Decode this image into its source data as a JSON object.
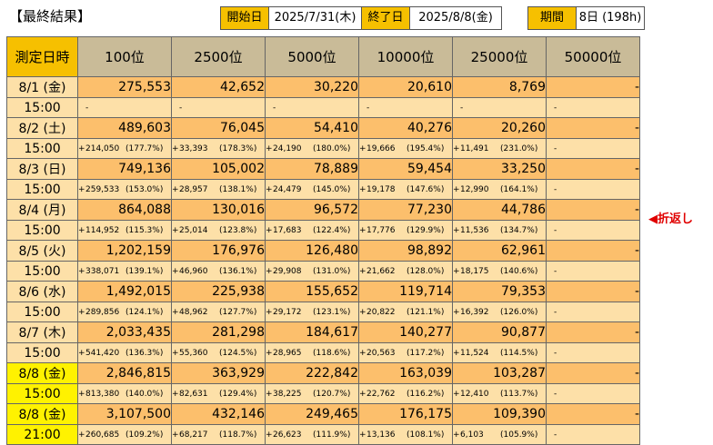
{
  "title": "【最終結果】",
  "header": {
    "start_label": "開始日",
    "start_value": "2025/7/31(木)",
    "end_label": "終了日",
    "end_value": "2025/8/8(金)",
    "period_label": "期間",
    "period_value": "8日 (198h)"
  },
  "columns": [
    "測定日時",
    "100位",
    "2500位",
    "5000位",
    "10000位",
    "25000位",
    "50000位"
  ],
  "rows": [
    {
      "date": "8/1 (金)",
      "time": "15:00",
      "highlight": false,
      "values": [
        "275,553",
        "42,652",
        "30,220",
        "20,610",
        "8,769",
        "-"
      ],
      "diffs": [
        [
          "",
          "-",
          ""
        ],
        [
          "",
          "-",
          ""
        ],
        [
          "",
          "-",
          ""
        ],
        [
          "",
          "-",
          ""
        ],
        [
          "",
          "-",
          ""
        ],
        [
          "",
          "-",
          ""
        ]
      ]
    },
    {
      "date": "8/2 (土)",
      "time": "15:00",
      "highlight": false,
      "values": [
        "489,603",
        "76,045",
        "54,410",
        "40,276",
        "20,260",
        "-"
      ],
      "diffs": [
        [
          "+",
          "214,050",
          "(177.7%)"
        ],
        [
          "+",
          "33,393",
          "(178.3%)"
        ],
        [
          "+",
          "24,190",
          "(180.0%)"
        ],
        [
          "+",
          "19,666",
          "(195.4%)"
        ],
        [
          "+",
          "11,491",
          "(231.0%)"
        ],
        [
          "",
          "-",
          ""
        ]
      ]
    },
    {
      "date": "8/3 (日)",
      "time": "15:00",
      "highlight": false,
      "values": [
        "749,136",
        "105,002",
        "78,889",
        "59,454",
        "33,250",
        "-"
      ],
      "diffs": [
        [
          "+",
          "259,533",
          "(153.0%)"
        ],
        [
          "+",
          "28,957",
          "(138.1%)"
        ],
        [
          "+",
          "24,479",
          "(145.0%)"
        ],
        [
          "+",
          "19,178",
          "(147.6%)"
        ],
        [
          "+",
          "12,990",
          "(164.1%)"
        ],
        [
          "",
          "-",
          ""
        ]
      ]
    },
    {
      "date": "8/4 (月)",
      "time": "15:00",
      "highlight": false,
      "values": [
        "864,088",
        "130,016",
        "96,572",
        "77,230",
        "44,786",
        "-"
      ],
      "diffs": [
        [
          "+",
          "114,952",
          "(115.3%)"
        ],
        [
          "+",
          "25,014",
          "(123.8%)"
        ],
        [
          "+",
          "17,683",
          "(122.4%)"
        ],
        [
          "+",
          "17,776",
          "(129.9%)"
        ],
        [
          "+",
          "11,536",
          "(134.7%)"
        ],
        [
          "",
          "-",
          ""
        ]
      ]
    },
    {
      "date": "8/5 (火)",
      "time": "15:00",
      "highlight": false,
      "values": [
        "1,202,159",
        "176,976",
        "126,480",
        "98,892",
        "62,961",
        "-"
      ],
      "diffs": [
        [
          "+",
          "338,071",
          "(139.1%)"
        ],
        [
          "+",
          "46,960",
          "(136.1%)"
        ],
        [
          "+",
          "29,908",
          "(131.0%)"
        ],
        [
          "+",
          "21,662",
          "(128.0%)"
        ],
        [
          "+",
          "18,175",
          "(140.6%)"
        ],
        [
          "",
          "-",
          ""
        ]
      ]
    },
    {
      "date": "8/6 (水)",
      "time": "15:00",
      "highlight": false,
      "values": [
        "1,492,015",
        "225,938",
        "155,652",
        "119,714",
        "79,353",
        "-"
      ],
      "diffs": [
        [
          "+",
          "289,856",
          "(124.1%)"
        ],
        [
          "+",
          "48,962",
          "(127.7%)"
        ],
        [
          "+",
          "29,172",
          "(123.1%)"
        ],
        [
          "+",
          "20,822",
          "(121.1%)"
        ],
        [
          "+",
          "16,392",
          "(126.0%)"
        ],
        [
          "",
          "-",
          ""
        ]
      ]
    },
    {
      "date": "8/7 (木)",
      "time": "15:00",
      "highlight": false,
      "values": [
        "2,033,435",
        "281,298",
        "184,617",
        "140,277",
        "90,877",
        "-"
      ],
      "diffs": [
        [
          "+",
          "541,420",
          "(136.3%)"
        ],
        [
          "+",
          "55,360",
          "(124.5%)"
        ],
        [
          "+",
          "28,965",
          "(118.6%)"
        ],
        [
          "+",
          "20,563",
          "(117.2%)"
        ],
        [
          "+",
          "11,524",
          "(114.5%)"
        ],
        [
          "",
          "-",
          ""
        ]
      ]
    },
    {
      "date": "8/8 (金)",
      "time": "15:00",
      "highlight": true,
      "values": [
        "2,846,815",
        "363,929",
        "222,842",
        "163,039",
        "103,287",
        "-"
      ],
      "diffs": [
        [
          "+",
          "813,380",
          "(140.0%)"
        ],
        [
          "+",
          "82,631",
          "(129.4%)"
        ],
        [
          "+",
          "38,225",
          "(120.7%)"
        ],
        [
          "+",
          "22,762",
          "(116.2%)"
        ],
        [
          "+",
          "12,410",
          "(113.7%)"
        ],
        [
          "",
          "-",
          ""
        ]
      ]
    },
    {
      "date": "8/8 (金)",
      "time": "21:00",
      "highlight": true,
      "values": [
        "3,107,500",
        "432,146",
        "249,465",
        "176,175",
        "109,390",
        "-"
      ],
      "diffs": [
        [
          "+",
          "260,685",
          "(109.2%)"
        ],
        [
          "+",
          "68,217",
          "(118.7%)"
        ],
        [
          "+",
          "26,623",
          "(111.9%)"
        ],
        [
          "+",
          "13,136",
          "(108.1%)"
        ],
        [
          "+",
          "6,103",
          "(105.9%)"
        ],
        [
          "",
          "-",
          ""
        ]
      ]
    }
  ],
  "note": "◀折返し"
}
